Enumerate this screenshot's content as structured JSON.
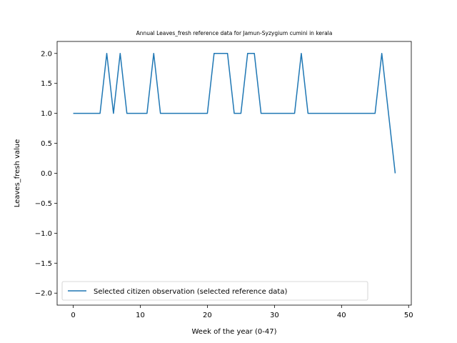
{
  "chart_data": {
    "type": "line",
    "title": "Annual Leaves_fresh reference data for Jamun-Syzygium cumini in kerala",
    "xlabel": "Week of the year (0-47)",
    "ylabel": "Leaves_fresh value",
    "xlim": [
      -2.4,
      50.4
    ],
    "ylim": [
      -2.2,
      2.2
    ],
    "xticks": [
      0,
      10,
      20,
      30,
      40,
      50
    ],
    "yticks": [
      -2.0,
      -1.5,
      -1.0,
      -0.5,
      0.0,
      0.5,
      1.0,
      1.5,
      2.0
    ],
    "grid": false,
    "legend_position": "lower-left",
    "series": [
      {
        "name": "Selected citizen observation (selected reference data)",
        "color": "#1f77b4",
        "x": [
          0,
          1,
          2,
          3,
          4,
          5,
          6,
          7,
          8,
          9,
          10,
          11,
          12,
          13,
          14,
          15,
          16,
          17,
          18,
          19,
          20,
          21,
          22,
          23,
          24,
          25,
          26,
          27,
          28,
          29,
          30,
          31,
          32,
          33,
          34,
          35,
          36,
          37,
          38,
          39,
          40,
          41,
          42,
          43,
          44,
          45,
          46,
          47,
          48
        ],
        "y": [
          1,
          1,
          1,
          1,
          1,
          2,
          1,
          2,
          1,
          1,
          1,
          1,
          2,
          1,
          1,
          1,
          1,
          1,
          1,
          1,
          1,
          2,
          2,
          2,
          1,
          1,
          2,
          2,
          1,
          1,
          1,
          1,
          1,
          1,
          2,
          1,
          1,
          1,
          1,
          1,
          1,
          1,
          1,
          1,
          1,
          1,
          2,
          1,
          0
        ]
      }
    ]
  }
}
